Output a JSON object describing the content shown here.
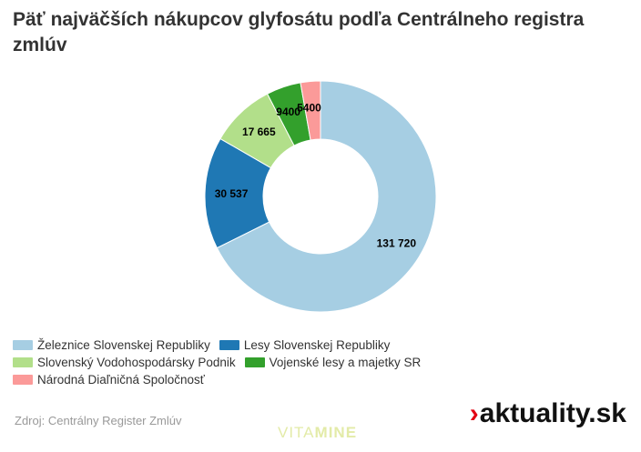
{
  "title": "Päť najväčších nákupcov glyfosátu podľa Centrálneho registra zmlúv",
  "source": "Zdroj: Centrálny Register Zmlúv",
  "watermark": {
    "part1": "VITA",
    "part2": "MINE"
  },
  "brand": {
    "chevron": "›",
    "name": "aktuality.sk"
  },
  "chart_data": {
    "type": "pie",
    "title": "Päť najväčších nákupcov glyfosátu podľa Centrálneho registra zmlúv",
    "legend_placement": "bottom-left",
    "series": [
      {
        "name": "Železnice Slovenskej Republiky",
        "value": 131720,
        "label": "131 720",
        "color": "#a6cee3"
      },
      {
        "name": "Lesy Slovenskej Republiky",
        "value": 30537,
        "label": "30 537",
        "color": "#1f78b4"
      },
      {
        "name": "Slovenský Vodohospodársky Podnik",
        "value": 17665,
        "label": "17 665",
        "color": "#b2df8a"
      },
      {
        "name": "Vojenské lesy a majetky SR",
        "value": 9400,
        "label": "9400",
        "color": "#33a02c"
      },
      {
        "name": "Národná Diaľničná Spoločnosť",
        "value": 5400,
        "label": "5400",
        "color": "#fb9a99"
      }
    ]
  }
}
